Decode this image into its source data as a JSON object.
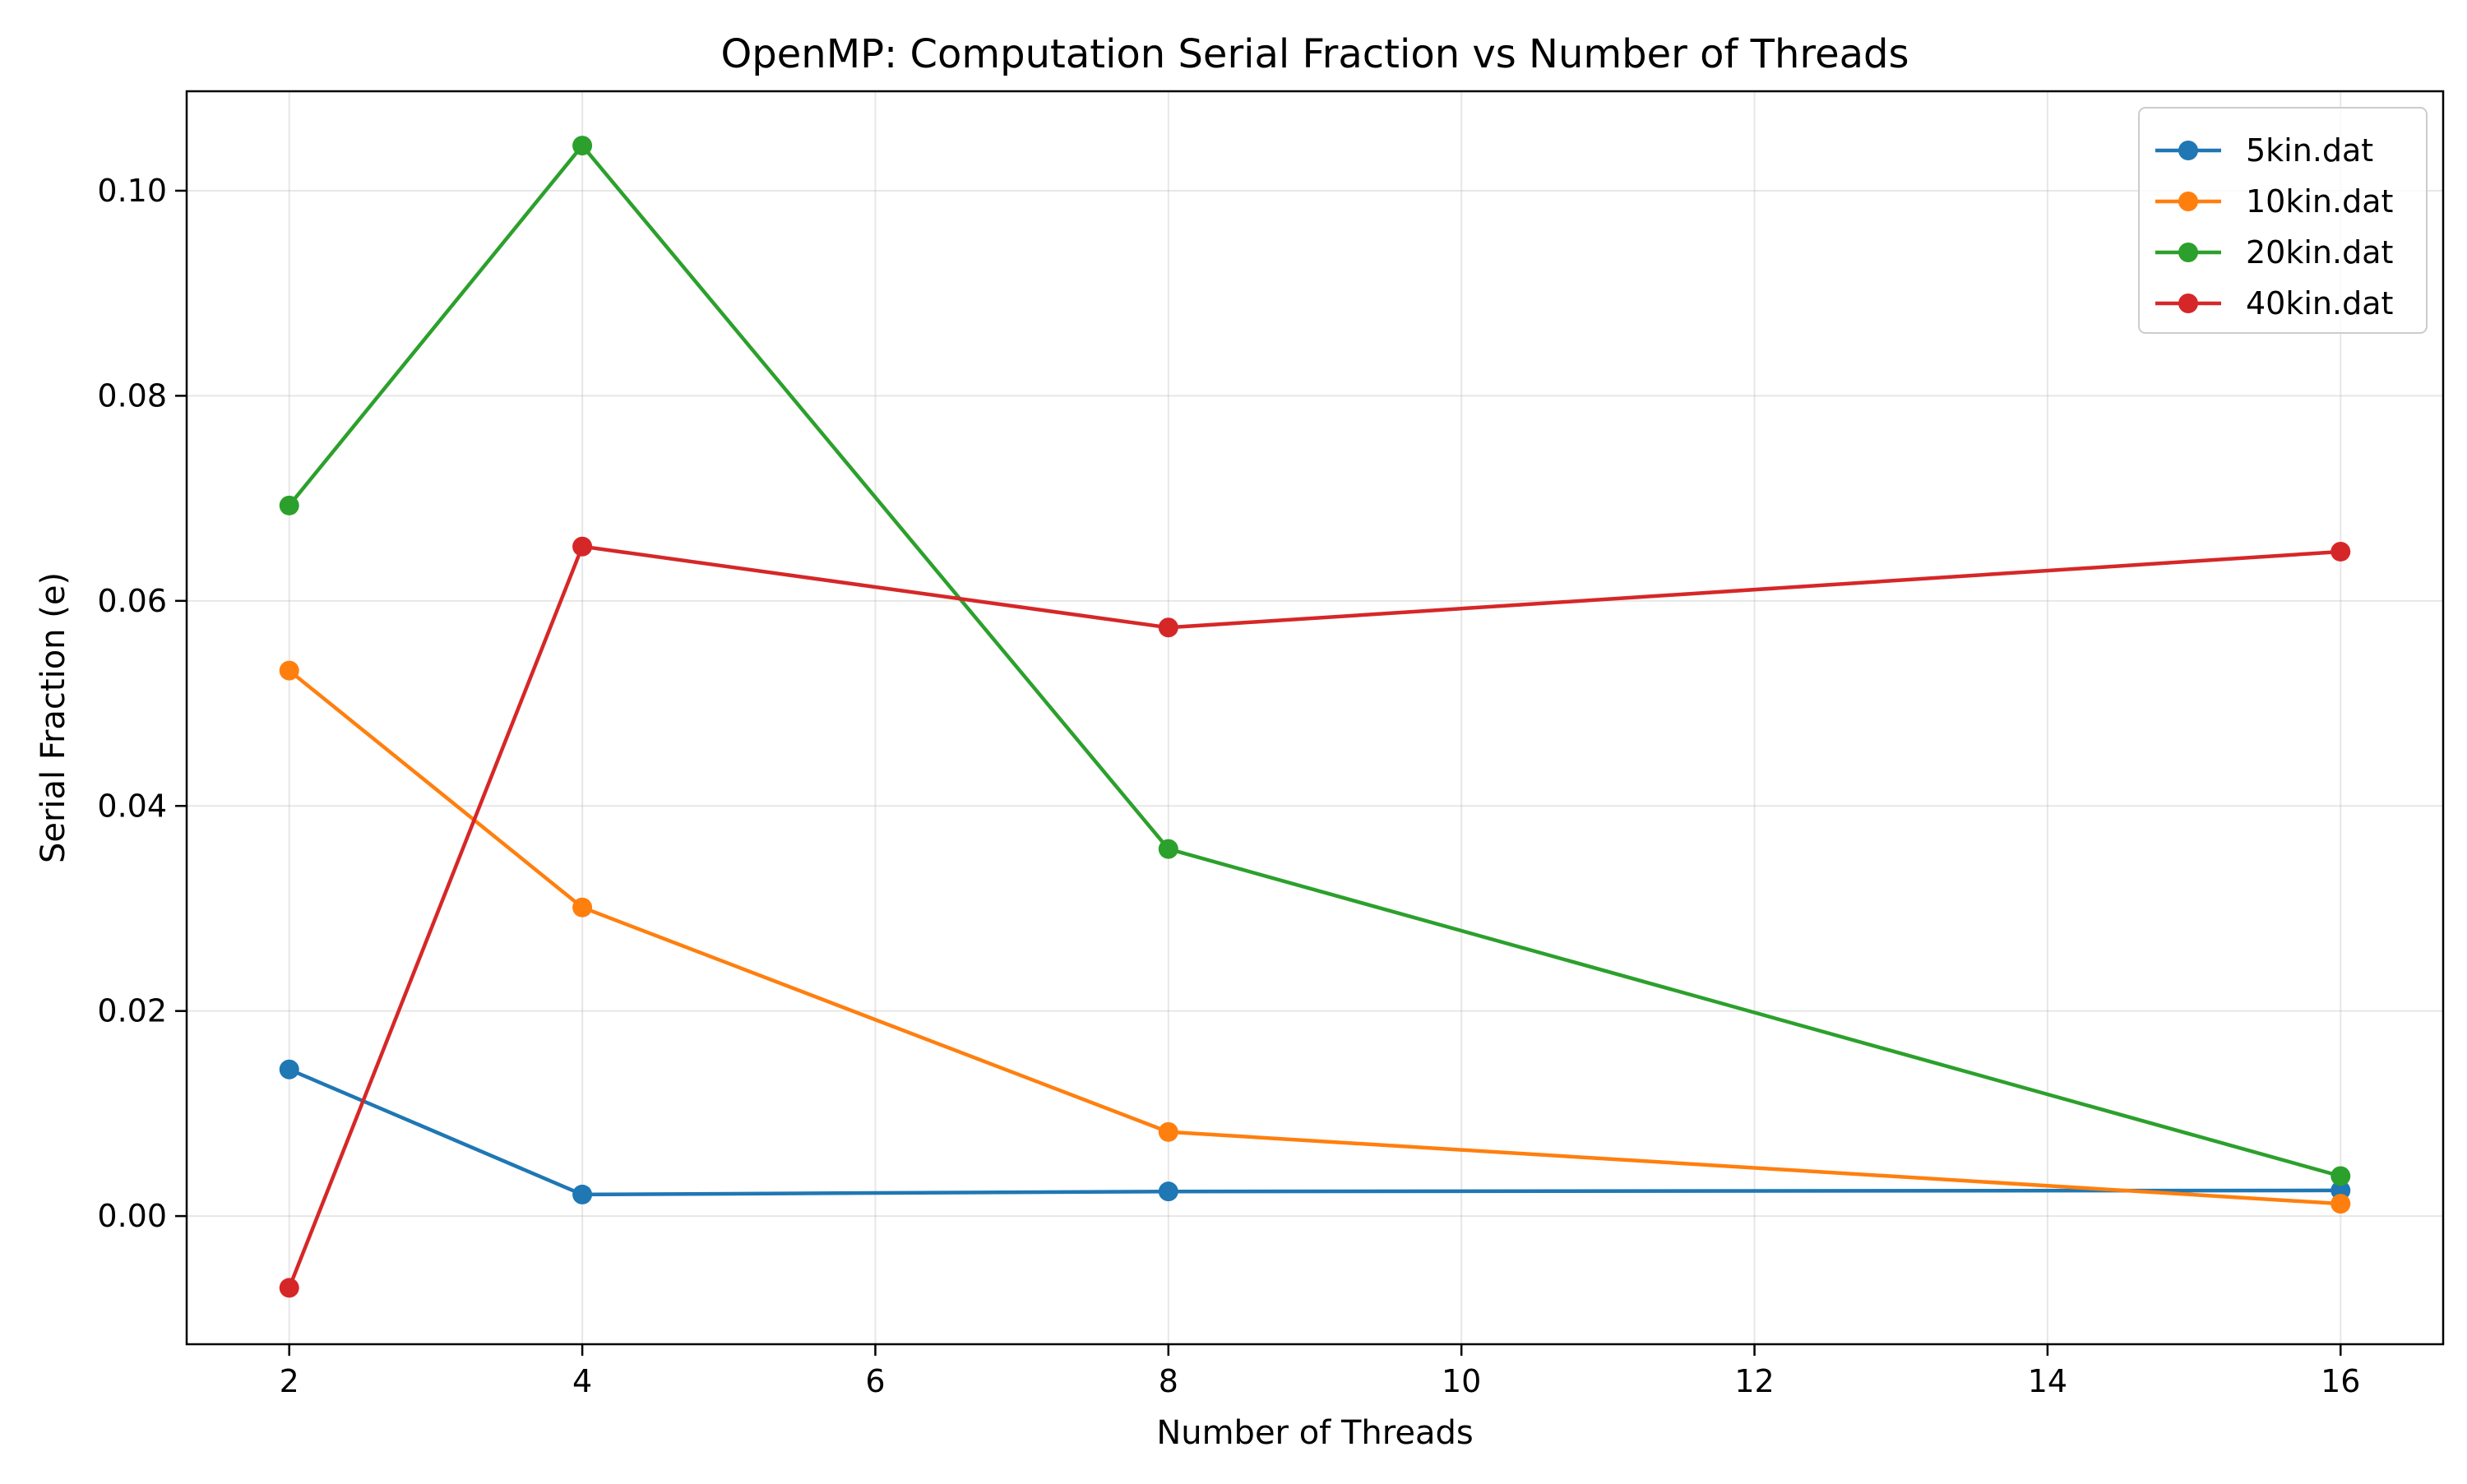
{
  "chart_data": {
    "type": "line",
    "title": "OpenMP: Computation Serial Fraction vs Number of Threads",
    "xlabel": "Number of Threads",
    "ylabel": "Serial Fraction (e)",
    "x": [
      2,
      4,
      8,
      16
    ],
    "xlim": [
      1.3,
      16.7
    ],
    "ylim": [
      -0.0125,
      0.1097
    ],
    "xticks": [
      2,
      4,
      6,
      8,
      10,
      12,
      14,
      16
    ],
    "xtick_labels": [
      "2",
      "4",
      "6",
      "8",
      "10",
      "12",
      "14",
      "16"
    ],
    "yticks": [
      0.0,
      0.02,
      0.04,
      0.06,
      0.08,
      0.1
    ],
    "ytick_labels": [
      "0.00",
      "0.02",
      "0.04",
      "0.06",
      "0.08",
      "0.10"
    ],
    "grid": true,
    "legend_position": "top-right",
    "series": [
      {
        "name": "5kin.dat",
        "color": "#1f77b4",
        "values": [
          0.0143,
          0.0021,
          0.0024,
          0.0025
        ]
      },
      {
        "name": "10kin.dat",
        "color": "#ff7f0e",
        "values": [
          0.0532,
          0.0301,
          0.0082,
          0.0012
        ]
      },
      {
        "name": "20kin.dat",
        "color": "#2ca02c",
        "values": [
          0.0693,
          0.1044,
          0.0358,
          0.0039
        ]
      },
      {
        "name": "40kin.dat",
        "color": "#d62728",
        "values": [
          -0.007,
          0.0653,
          0.0574,
          0.0648
        ]
      }
    ]
  }
}
